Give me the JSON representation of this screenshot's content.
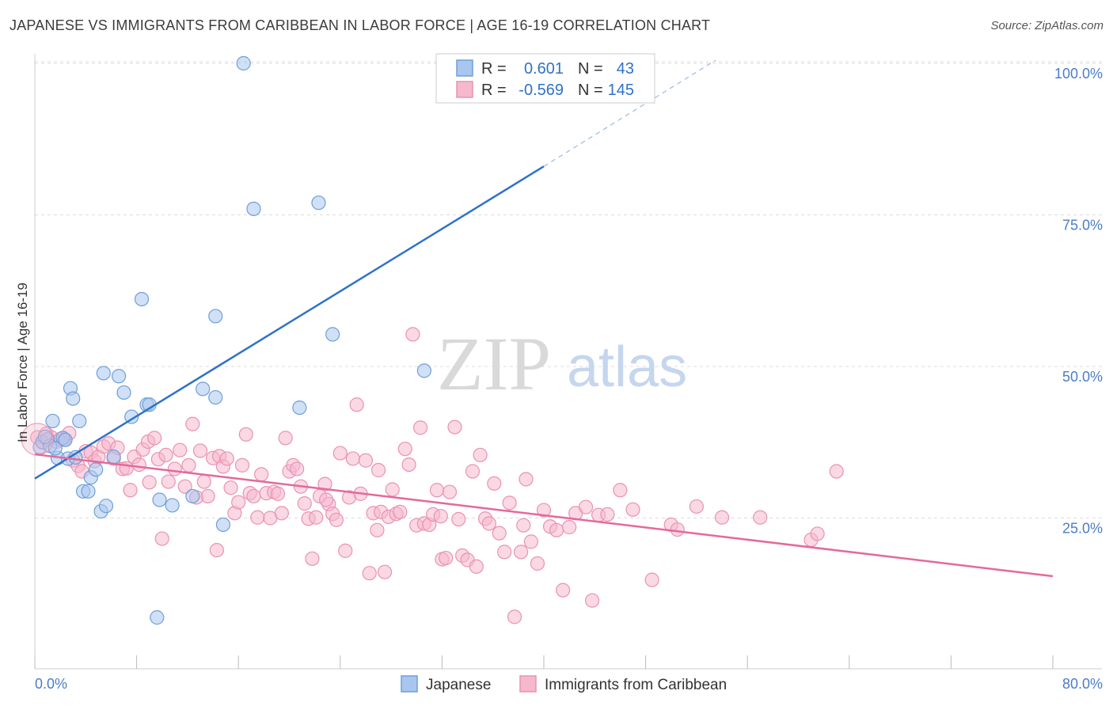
{
  "title": "JAPANESE VS IMMIGRANTS FROM CARIBBEAN IN LABOR FORCE | AGE 16-19 CORRELATION CHART",
  "source": "Source: ZipAtlas.com",
  "watermark": {
    "zip": "ZIP",
    "atlas": "atlas"
  },
  "legend_box": {
    "rows": [
      {
        "r_label": "R =",
        "r_value": "0.601",
        "n_label": "N =",
        "n_value": "43"
      },
      {
        "r_label": "R =",
        "r_value": "-0.569",
        "n_label": "N =",
        "n_value": "145"
      }
    ]
  },
  "bottom_legend": {
    "series": [
      "Japanese",
      "Immigrants from Caribbean"
    ]
  },
  "colors": {
    "japanese_fill": "#a9c6ee",
    "japanese_stroke": "#6f9fd8",
    "japanese_line": "#2f72c9",
    "caribbean_fill": "#f6b8cd",
    "caribbean_stroke": "#e993b1",
    "caribbean_line": "#e5699a",
    "value_text": "#2f72c9",
    "grid": "#dddddd"
  },
  "chart_data": {
    "type": "scatter",
    "title": "JAPANESE VS IMMIGRANTS FROM CARIBBEAN IN LABOR FORCE | AGE 16-19 CORRELATION CHART",
    "xlabel": "",
    "ylabel": "In Labor Force | Age 16-19",
    "xlim": [
      0,
      80
    ],
    "ylim": [
      0,
      102
    ],
    "x_tick_labels": [
      "0.0%",
      "80.0%"
    ],
    "y_ticks": [
      25,
      50,
      75,
      100
    ],
    "y_tick_labels": [
      "25.0%",
      "50.0%",
      "75.0%",
      "100.0%"
    ],
    "grid": true,
    "legend_position": "top-center",
    "series": [
      {
        "name": "Japanese",
        "R": 0.601,
        "N": 43,
        "trend": {
          "x0": 0,
          "y0": 31.5,
          "x1": 40,
          "y1": 83.0,
          "dash_to_x": 53.5,
          "dash_to_y": 100.5
        },
        "points": [
          [
            0.4,
            36.7
          ],
          [
            0.6,
            37.5
          ],
          [
            1.0,
            38.0
          ],
          [
            1.2,
            36.9
          ],
          [
            1.4,
            41.0
          ],
          [
            1.8,
            34.9
          ],
          [
            2.2,
            38.2
          ],
          [
            2.6,
            34.8
          ],
          [
            2.8,
            46.4
          ],
          [
            3.0,
            44.7
          ],
          [
            3.2,
            35.0
          ],
          [
            3.5,
            41.0
          ],
          [
            3.8,
            29.4
          ],
          [
            4.2,
            29.4
          ],
          [
            4.4,
            31.7
          ],
          [
            4.8,
            33.0
          ],
          [
            5.2,
            26.1
          ],
          [
            5.4,
            48.9
          ],
          [
            5.6,
            27.0
          ],
          [
            6.2,
            35.1
          ],
          [
            6.6,
            48.4
          ],
          [
            7.0,
            45.7
          ],
          [
            7.6,
            41.7
          ],
          [
            8.4,
            61.1
          ],
          [
            8.8,
            43.7
          ],
          [
            9.0,
            43.7
          ],
          [
            9.6,
            8.6
          ],
          [
            9.8,
            28.0
          ],
          [
            10.8,
            27.1
          ],
          [
            12.4,
            28.6
          ],
          [
            13.2,
            46.3
          ],
          [
            14.2,
            58.3
          ],
          [
            14.2,
            44.9
          ],
          [
            14.8,
            23.9
          ],
          [
            16.4,
            100.0
          ],
          [
            17.2,
            76.0
          ],
          [
            20.8,
            43.2
          ],
          [
            22.3,
            77.0
          ],
          [
            23.4,
            55.3
          ],
          [
            30.6,
            49.3
          ],
          [
            0.8,
            38.4
          ],
          [
            1.6,
            36.5
          ],
          [
            2.4,
            37.9
          ]
        ]
      },
      {
        "name": "Immigrants from Caribbean",
        "R": -0.569,
        "N": 145,
        "trend": {
          "x0": 0,
          "y0": 35.5,
          "x1": 80,
          "y1": 15.4
        },
        "points": [
          [
            0.2,
            38.3
          ],
          [
            0.6,
            37.6
          ],
          [
            0.9,
            38.9
          ],
          [
            1.3,
            38.3
          ],
          [
            1.7,
            37.6
          ],
          [
            2.0,
            38.0
          ],
          [
            2.3,
            37.9
          ],
          [
            2.7,
            39.0
          ],
          [
            3.0,
            34.5
          ],
          [
            3.4,
            33.6
          ],
          [
            3.7,
            32.7
          ],
          [
            4.0,
            36.0
          ],
          [
            4.4,
            35.8
          ],
          [
            4.7,
            34.4
          ],
          [
            5.0,
            35.1
          ],
          [
            5.4,
            36.8
          ],
          [
            5.8,
            37.3
          ],
          [
            6.2,
            34.8
          ],
          [
            6.5,
            36.6
          ],
          [
            6.9,
            33.1
          ],
          [
            7.2,
            33.2
          ],
          [
            7.5,
            29.6
          ],
          [
            7.8,
            35.1
          ],
          [
            8.2,
            33.8
          ],
          [
            8.5,
            36.3
          ],
          [
            8.9,
            37.6
          ],
          [
            9.0,
            30.9
          ],
          [
            9.4,
            38.2
          ],
          [
            9.7,
            34.7
          ],
          [
            10.0,
            21.6
          ],
          [
            10.3,
            35.4
          ],
          [
            10.5,
            31.0
          ],
          [
            11.0,
            33.1
          ],
          [
            11.4,
            36.2
          ],
          [
            11.8,
            30.2
          ],
          [
            12.1,
            33.7
          ],
          [
            12.4,
            40.5
          ],
          [
            12.7,
            28.4
          ],
          [
            13.0,
            36.1
          ],
          [
            13.3,
            31.0
          ],
          [
            13.6,
            28.6
          ],
          [
            14.0,
            34.9
          ],
          [
            14.3,
            19.7
          ],
          [
            14.5,
            35.2
          ],
          [
            14.8,
            33.5
          ],
          [
            15.1,
            34.8
          ],
          [
            15.4,
            30.0
          ],
          [
            15.7,
            25.8
          ],
          [
            16.0,
            27.6
          ],
          [
            16.3,
            33.7
          ],
          [
            16.6,
            38.8
          ],
          [
            16.9,
            29.1
          ],
          [
            17.2,
            28.6
          ],
          [
            17.5,
            25.1
          ],
          [
            17.8,
            32.2
          ],
          [
            18.2,
            29.1
          ],
          [
            18.5,
            25.0
          ],
          [
            18.8,
            29.3
          ],
          [
            19.1,
            29.0
          ],
          [
            19.4,
            25.8
          ],
          [
            19.7,
            38.2
          ],
          [
            20.0,
            32.7
          ],
          [
            20.3,
            33.7
          ],
          [
            20.6,
            33.1
          ],
          [
            20.9,
            30.2
          ],
          [
            21.2,
            27.4
          ],
          [
            21.5,
            24.9
          ],
          [
            21.8,
            18.3
          ],
          [
            22.1,
            25.1
          ],
          [
            22.4,
            28.6
          ],
          [
            22.8,
            30.6
          ],
          [
            23.1,
            27.3
          ],
          [
            23.4,
            25.7
          ],
          [
            23.7,
            24.7
          ],
          [
            24.0,
            35.7
          ],
          [
            24.4,
            19.6
          ],
          [
            24.7,
            28.4
          ],
          [
            25.0,
            34.8
          ],
          [
            25.3,
            43.7
          ],
          [
            25.6,
            29.0
          ],
          [
            26.0,
            34.5
          ],
          [
            26.3,
            15.9
          ],
          [
            26.6,
            25.8
          ],
          [
            26.9,
            23.0
          ],
          [
            27.2,
            26.0
          ],
          [
            27.5,
            16.1
          ],
          [
            27.8,
            25.2
          ],
          [
            28.1,
            29.7
          ],
          [
            28.4,
            25.7
          ],
          [
            28.7,
            26.0
          ],
          [
            29.1,
            36.4
          ],
          [
            29.4,
            33.8
          ],
          [
            29.7,
            55.3
          ],
          [
            30.0,
            23.8
          ],
          [
            30.3,
            39.9
          ],
          [
            30.6,
            24.1
          ],
          [
            31.0,
            23.9
          ],
          [
            31.3,
            25.6
          ],
          [
            31.6,
            29.6
          ],
          [
            32.0,
            18.2
          ],
          [
            32.3,
            18.4
          ],
          [
            32.6,
            29.3
          ],
          [
            33.0,
            40.0
          ],
          [
            33.3,
            24.8
          ],
          [
            33.6,
            18.8
          ],
          [
            34.0,
            18.1
          ],
          [
            34.4,
            32.7
          ],
          [
            34.7,
            17.0
          ],
          [
            35.0,
            35.4
          ],
          [
            35.4,
            24.9
          ],
          [
            35.7,
            24.1
          ],
          [
            36.1,
            30.7
          ],
          [
            36.5,
            22.5
          ],
          [
            36.9,
            19.4
          ],
          [
            37.3,
            27.5
          ],
          [
            37.7,
            8.7
          ],
          [
            38.2,
            19.4
          ],
          [
            38.6,
            31.4
          ],
          [
            39.0,
            21.1
          ],
          [
            39.5,
            17.5
          ],
          [
            40.0,
            26.3
          ],
          [
            40.5,
            23.6
          ],
          [
            41.0,
            23.0
          ],
          [
            41.5,
            13.1
          ],
          [
            42.0,
            23.5
          ],
          [
            42.5,
            25.8
          ],
          [
            43.3,
            26.8
          ],
          [
            43.8,
            11.4
          ],
          [
            44.3,
            25.5
          ],
          [
            45.0,
            25.6
          ],
          [
            46.0,
            29.6
          ],
          [
            47.0,
            26.4
          ],
          [
            48.5,
            14.8
          ],
          [
            50.0,
            23.9
          ],
          [
            50.5,
            23.1
          ],
          [
            52.0,
            26.9
          ],
          [
            54.0,
            25.1
          ],
          [
            57.0,
            25.1
          ],
          [
            61.0,
            21.4
          ],
          [
            61.5,
            22.4
          ],
          [
            63.0,
            32.7
          ],
          [
            38.4,
            23.8
          ],
          [
            27.0,
            32.9
          ],
          [
            22.9,
            28.0
          ],
          [
            31.9,
            25.3
          ]
        ]
      }
    ]
  }
}
